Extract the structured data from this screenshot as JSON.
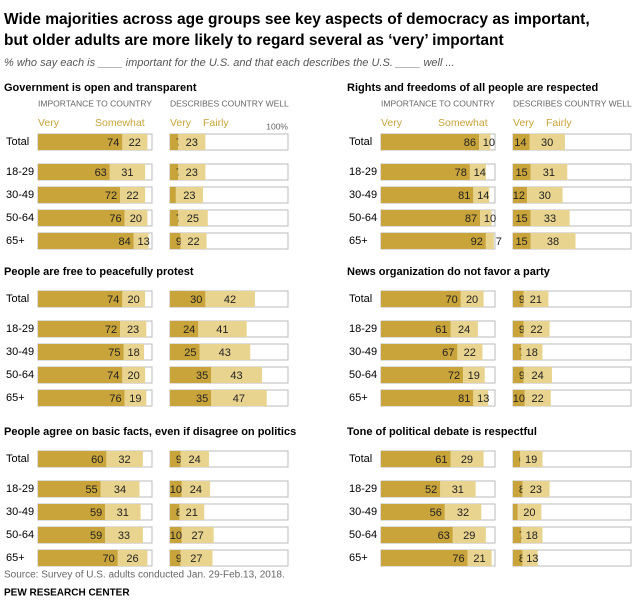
{
  "title": [
    "Wide majorities across age groups see key aspects of democracy as important,",
    "but older adults are more likely to regard several as ‘very’ important"
  ],
  "subtitle": "% who say each is ____ important for the U.S. and that each describes the U.S. ____ well ...",
  "source": "Source: Survey of U.S. adults conducted Jan. 29-Feb.13, 2018.",
  "footer": "PEW RESEARCH CENTER",
  "columns": [
    {
      "header": "IMPORTANCE TO COUNTRY",
      "legend": [
        "Very",
        "Somewhat"
      ],
      "colors": [
        "#c9a43b",
        "#e8d48f"
      ]
    },
    {
      "header": "DESCRIBES COUNTRY WELL",
      "legend": [
        "Very",
        "Fairly"
      ],
      "colors": [
        "#c9a43b",
        "#e8d48f"
      ]
    }
  ],
  "chart_data": [
    {
      "type": "bar",
      "title": "Government is open and transparent",
      "categories": [
        "Total",
        "18-29",
        "30-49",
        "50-64",
        "65+"
      ],
      "xlim": [
        0,
        100
      ],
      "xticks": [
        {
          "value": 100,
          "label": "100%"
        }
      ],
      "importance": {
        "very": [
          74,
          63,
          72,
          76,
          84
        ],
        "somewhat": [
          22,
          31,
          22,
          20,
          13
        ]
      },
      "describes": {
        "very": [
          7,
          7,
          5,
          7,
          9
        ],
        "fairly": [
          23,
          23,
          23,
          25,
          22
        ]
      }
    },
    {
      "type": "bar",
      "title": "Rights and freedoms of all people are respected",
      "categories": [
        "Total",
        "18-29",
        "30-49",
        "50-64",
        "65+"
      ],
      "xlim": [
        0,
        100
      ],
      "importance": {
        "very": [
          86,
          78,
          81,
          87,
          92
        ],
        "somewhat": [
          10,
          14,
          14,
          10,
          7
        ]
      },
      "describes": {
        "very": [
          14,
          15,
          12,
          15,
          15
        ],
        "fairly": [
          30,
          31,
          30,
          33,
          38
        ]
      }
    },
    {
      "type": "bar",
      "title": "People are free to peacefully protest",
      "categories": [
        "Total",
        "18-29",
        "30-49",
        "50-64",
        "65+"
      ],
      "xlim": [
        0,
        100
      ],
      "importance": {
        "very": [
          74,
          72,
          75,
          74,
          76
        ],
        "somewhat": [
          20,
          23,
          18,
          20,
          19
        ]
      },
      "describes": {
        "very": [
          30,
          24,
          25,
          35,
          35
        ],
        "fairly": [
          42,
          41,
          43,
          43,
          47
        ]
      }
    },
    {
      "type": "bar",
      "title": "News organization do not favor a party",
      "categories": [
        "Total",
        "18-29",
        "30-49",
        "50-64",
        "65+"
      ],
      "xlim": [
        0,
        100
      ],
      "importance": {
        "very": [
          70,
          61,
          67,
          72,
          81
        ],
        "somewhat": [
          20,
          24,
          22,
          19,
          13
        ]
      },
      "describes": {
        "very": [
          9,
          9,
          7,
          9,
          10
        ],
        "fairly": [
          21,
          22,
          18,
          24,
          22
        ]
      }
    },
    {
      "type": "bar",
      "title": "People agree on basic facts, even if disagree on politics",
      "categories": [
        "Total",
        "18-29",
        "30-49",
        "50-64",
        "65+"
      ],
      "xlim": [
        0,
        100
      ],
      "importance": {
        "very": [
          60,
          55,
          59,
          59,
          70
        ],
        "somewhat": [
          32,
          34,
          31,
          33,
          26
        ]
      },
      "describes": {
        "very": [
          9,
          10,
          8,
          10,
          9
        ],
        "fairly": [
          24,
          24,
          21,
          27,
          27
        ]
      }
    },
    {
      "type": "bar",
      "title": "Tone of political debate is respectful",
      "categories": [
        "Total",
        "18-29",
        "30-49",
        "50-64",
        "65+"
      ],
      "xlim": [
        0,
        100
      ],
      "importance": {
        "very": [
          61,
          52,
          56,
          63,
          76
        ],
        "somewhat": [
          29,
          31,
          32,
          29,
          21
        ]
      },
      "describes": {
        "very": [
          6,
          8,
          4,
          7,
          8
        ],
        "fairly": [
          19,
          23,
          20,
          18,
          13
        ]
      }
    }
  ]
}
